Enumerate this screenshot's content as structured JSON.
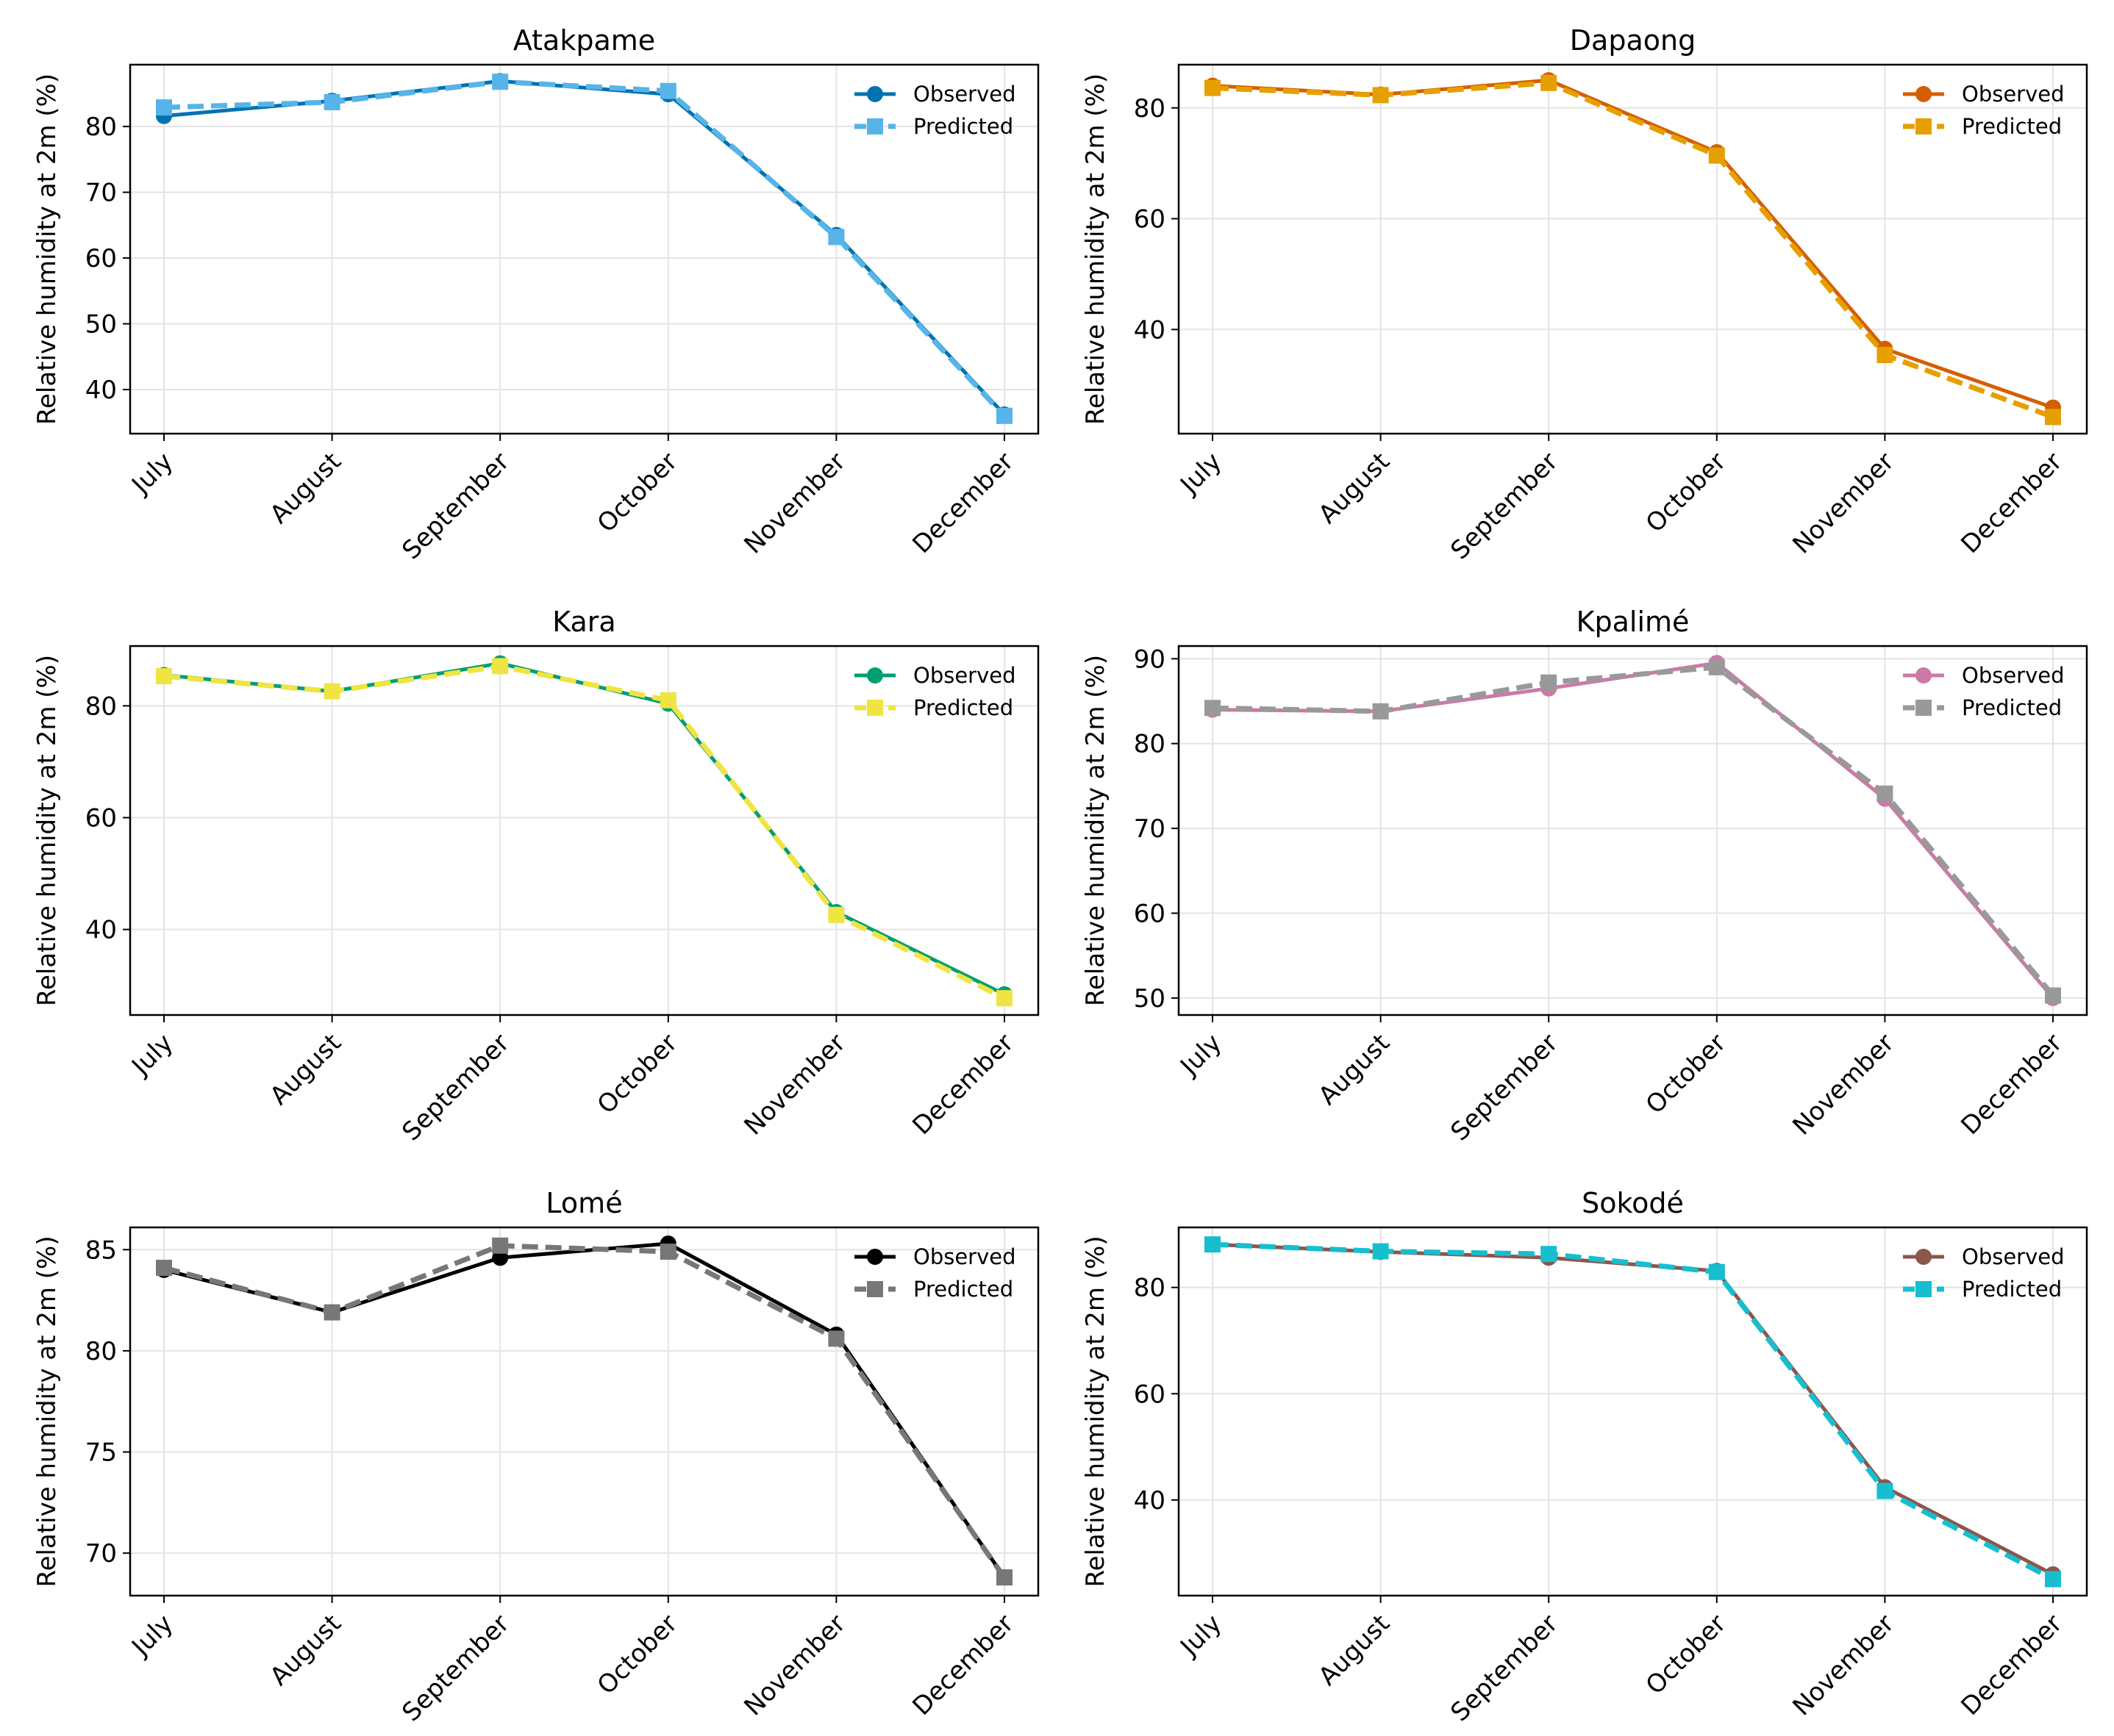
{
  "chart_data": [
    {
      "type": "line",
      "title": "Atakpame",
      "xlabel": "",
      "ylabel": "Relative humidity at 2m (%)",
      "categories": [
        "July",
        "August",
        "September",
        "October",
        "November",
        "December"
      ],
      "ylim": [
        33.3,
        89.4
      ],
      "yticks": [
        40,
        50,
        60,
        70,
        80
      ],
      "legend": "top-right",
      "grid": true,
      "series": [
        {
          "name": "Observed",
          "style": "solid",
          "marker": "circle",
          "color": "#0072b2",
          "values": [
            81.6,
            83.9,
            86.9,
            84.9,
            63.5,
            36.2
          ]
        },
        {
          "name": "Predicted",
          "style": "dashed",
          "marker": "square",
          "color": "#56b4e9",
          "values": [
            82.9,
            83.7,
            86.8,
            85.4,
            63.2,
            36.0
          ]
        }
      ]
    },
    {
      "type": "line",
      "title": "Dapaong",
      "xlabel": "",
      "ylabel": "Relative humidity at 2m (%)",
      "categories": [
        "July",
        "August",
        "September",
        "October",
        "November",
        "December"
      ],
      "ylim": [
        21.2,
        87.8
      ],
      "yticks": [
        40,
        60,
        80
      ],
      "legend": "top-right",
      "grid": true,
      "series": [
        {
          "name": "Observed",
          "style": "solid",
          "marker": "circle",
          "color": "#d55e00",
          "values": [
            84.0,
            82.4,
            85.0,
            72.0,
            36.5,
            25.9
          ]
        },
        {
          "name": "Predicted",
          "style": "dashed",
          "marker": "square",
          "color": "#e69f00",
          "values": [
            83.6,
            82.3,
            84.5,
            71.4,
            35.4,
            24.2
          ]
        }
      ]
    },
    {
      "type": "line",
      "title": "Kara",
      "xlabel": "",
      "ylabel": "Relative humidity at 2m (%)",
      "categories": [
        "July",
        "August",
        "September",
        "October",
        "November",
        "December"
      ],
      "ylim": [
        24.7,
        90.7
      ],
      "yticks": [
        40,
        60,
        80
      ],
      "legend": "top-right",
      "grid": true,
      "series": [
        {
          "name": "Observed",
          "style": "solid",
          "marker": "circle",
          "color": "#009e73",
          "values": [
            85.5,
            82.6,
            87.6,
            80.4,
            43.1,
            28.4
          ]
        },
        {
          "name": "Predicted",
          "style": "dashed",
          "marker": "square",
          "color": "#f0e442",
          "values": [
            85.3,
            82.6,
            87.1,
            81.0,
            42.6,
            27.7
          ]
        }
      ]
    },
    {
      "type": "line",
      "title": "Kpalimé",
      "xlabel": "",
      "ylabel": "Relative humidity at 2m (%)",
      "categories": [
        "July",
        "August",
        "September",
        "October",
        "November",
        "December"
      ],
      "ylim": [
        48.0,
        91.5
      ],
      "yticks": [
        50,
        60,
        70,
        80,
        90
      ],
      "legend": "top-right",
      "grid": true,
      "series": [
        {
          "name": "Observed",
          "style": "solid",
          "marker": "circle",
          "color": "#cc79a7",
          "values": [
            84.0,
            83.8,
            86.5,
            89.5,
            73.5,
            50.0
          ]
        },
        {
          "name": "Predicted",
          "style": "dashed",
          "marker": "square",
          "color": "#999999",
          "values": [
            84.2,
            83.8,
            87.2,
            89.0,
            74.1,
            50.3
          ]
        }
      ]
    },
    {
      "type": "line",
      "title": "Lomé",
      "xlabel": "",
      "ylabel": "Relative humidity at 2m (%)",
      "categories": [
        "July",
        "August",
        "September",
        "October",
        "November",
        "December"
      ],
      "ylim": [
        67.9,
        86.1
      ],
      "yticks": [
        70,
        75,
        80,
        85
      ],
      "legend": "top-right",
      "grid": true,
      "series": [
        {
          "name": "Observed",
          "style": "solid",
          "marker": "circle",
          "color": "#000000",
          "values": [
            84.0,
            81.9,
            84.6,
            85.3,
            80.8,
            68.8
          ]
        },
        {
          "name": "Predicted",
          "style": "dashed",
          "marker": "square",
          "color": "#777777",
          "values": [
            84.1,
            81.9,
            85.2,
            84.9,
            80.6,
            68.8
          ]
        }
      ]
    },
    {
      "type": "line",
      "title": "Sokodé",
      "xlabel": "",
      "ylabel": "Relative humidity at 2m (%)",
      "categories": [
        "July",
        "August",
        "September",
        "October",
        "November",
        "December"
      ],
      "ylim": [
        22.0,
        91.3
      ],
      "yticks": [
        40,
        60,
        80
      ],
      "legend": "top-right",
      "grid": true,
      "series": [
        {
          "name": "Observed",
          "style": "solid",
          "marker": "circle",
          "color": "#8c564b",
          "values": [
            88.1,
            86.7,
            85.6,
            83.1,
            42.4,
            26.0
          ]
        },
        {
          "name": "Predicted",
          "style": "dashed",
          "marker": "square",
          "color": "#17becf",
          "values": [
            88.1,
            86.8,
            86.3,
            82.9,
            41.7,
            25.1
          ]
        }
      ]
    }
  ]
}
